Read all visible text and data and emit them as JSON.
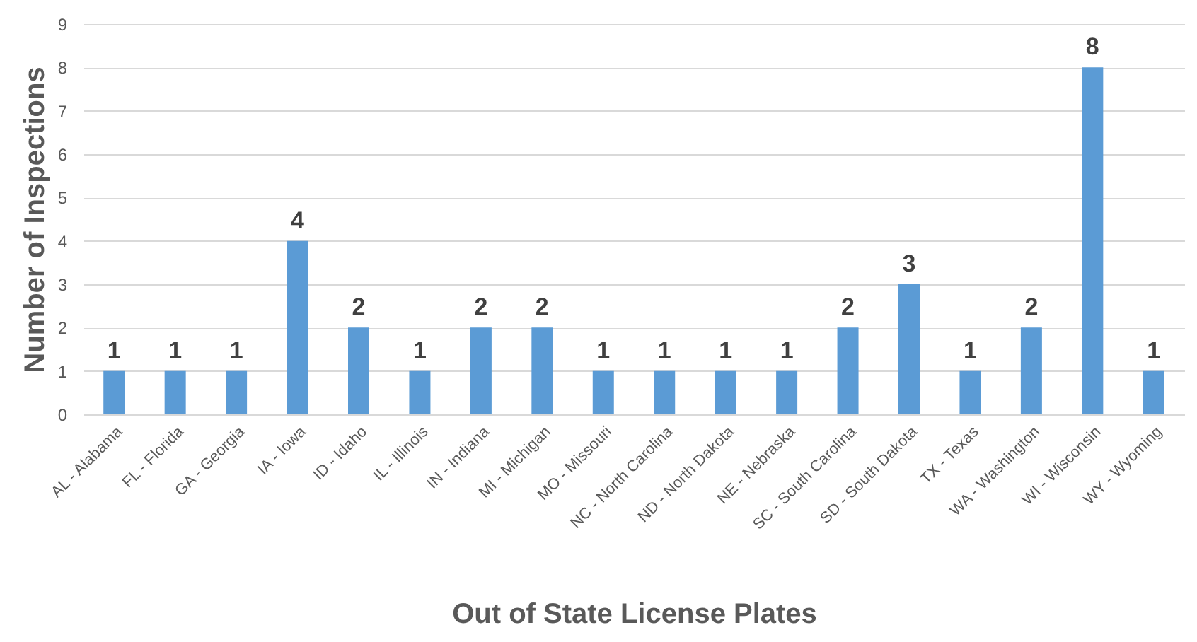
{
  "chart_data": {
    "type": "bar",
    "xlabel": "Out of State License Plates",
    "ylabel": "Number of Inspections",
    "categories": [
      "AL - Alabama",
      "FL - Florida",
      "GA - Georgia",
      "IA - Iowa",
      "ID - Idaho",
      "IL - Illinois",
      "IN - Indiana",
      "MI - Michigan",
      "MO - Missouri",
      "NC - North Carolina",
      "ND - North Dakota",
      "NE - Nebraska",
      "SC - South Carolina",
      "SD - South Dakota",
      "TX - Texas",
      "WA - Washington",
      "WI - Wisconsin",
      "WY - Wyoming"
    ],
    "values": [
      1,
      1,
      1,
      4,
      2,
      1,
      2,
      2,
      1,
      1,
      1,
      1,
      2,
      3,
      1,
      2,
      8,
      1
    ],
    "color": "#5b9bd5",
    "data_labels": true,
    "ylim": [
      0,
      9
    ],
    "yticks": [
      0,
      1,
      2,
      3,
      4,
      5,
      6,
      7,
      8,
      9
    ],
    "grid": "y"
  }
}
